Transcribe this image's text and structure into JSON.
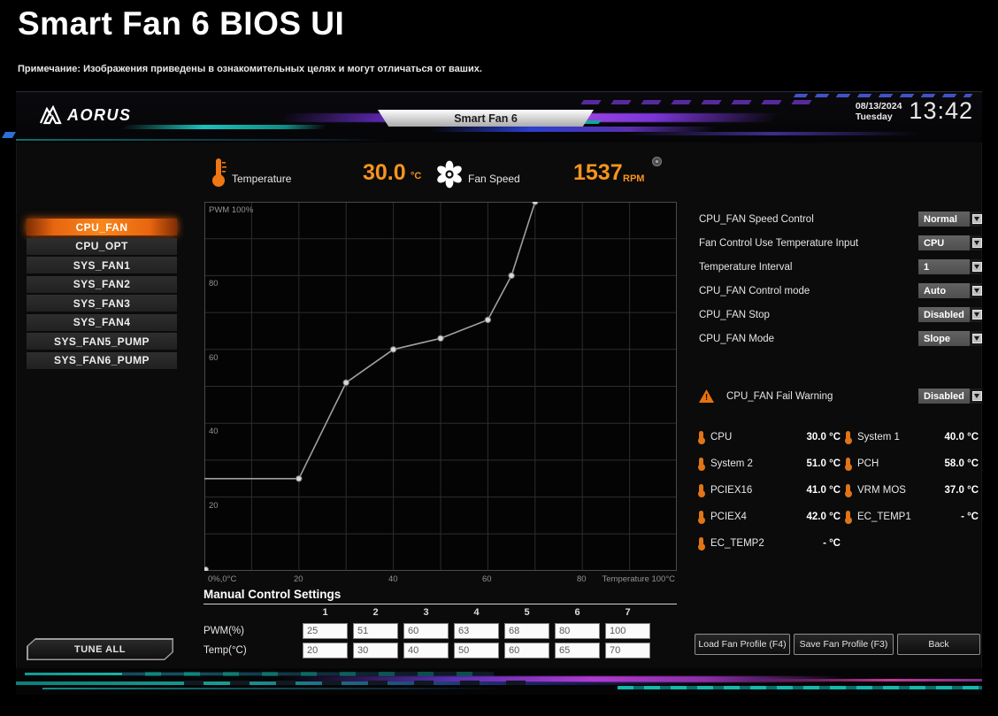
{
  "page": {
    "title": "Smart Fan 6 BIOS UI",
    "note": "Примечание: Изображения приведены в ознакомительных целях и могут отличаться от ваших."
  },
  "header": {
    "brand": "AORUS",
    "tab": "Smart Fan 6",
    "date": "08/13/2024",
    "weekday": "Tuesday",
    "time": "13:42"
  },
  "status": {
    "temperature_label": "Temperature",
    "temperature_value": "30.0",
    "temperature_unit": "°C",
    "fan_label": "Fan Speed",
    "fan_value": "1537",
    "fan_unit": "RPM"
  },
  "sidebar": {
    "items": [
      {
        "label": "CPU_FAN",
        "selected": true
      },
      {
        "label": "CPU_OPT",
        "selected": false
      },
      {
        "label": "SYS_FAN1",
        "selected": false
      },
      {
        "label": "SYS_FAN2",
        "selected": false
      },
      {
        "label": "SYS_FAN3",
        "selected": false
      },
      {
        "label": "SYS_FAN4",
        "selected": false
      },
      {
        "label": "SYS_FAN5_PUMP",
        "selected": false
      },
      {
        "label": "SYS_FAN6_PUMP",
        "selected": false
      }
    ],
    "tune_all": "TUNE ALL"
  },
  "chart_data": {
    "type": "line",
    "title": "CPU_FAN curve (PWM % vs temperature °C)",
    "x": [
      0,
      20,
      30,
      40,
      50,
      60,
      65,
      70
    ],
    "y": [
      25,
      25,
      51,
      60,
      63,
      68,
      80,
      100
    ],
    "xlabel": "Temperature (°C)",
    "ylabel": "PWM (%)",
    "xlim": [
      0,
      100
    ],
    "ylim": [
      0,
      100
    ],
    "grid": true,
    "x_ticks": [
      "0%,0°C",
      "20",
      "40",
      "60",
      "80",
      "Temperature 100°C"
    ],
    "y_ticks": [
      "PWM 100%",
      "80",
      "60",
      "40",
      "20"
    ]
  },
  "settings": {
    "rows": [
      {
        "label": "CPU_FAN Speed Control",
        "value": "Normal"
      },
      {
        "label": "Fan Control Use Temperature Input",
        "value": "CPU"
      },
      {
        "label": "Temperature Interval",
        "value": "1"
      },
      {
        "label": "CPU_FAN Control mode",
        "value": "Auto"
      },
      {
        "label": "CPU_FAN Stop",
        "value": "Disabled"
      },
      {
        "label": "CPU_FAN Mode",
        "value": "Slope"
      }
    ]
  },
  "fail_warning": {
    "label": "CPU_FAN Fail Warning",
    "value": "Disabled"
  },
  "sensors": {
    "items": [
      {
        "name": "CPU",
        "value": "30.0 °C"
      },
      {
        "name": "System 1",
        "value": "40.0 °C"
      },
      {
        "name": "System 2",
        "value": "51.0 °C"
      },
      {
        "name": "PCH",
        "value": "58.0 °C"
      },
      {
        "name": "PCIEX16",
        "value": "41.0 °C"
      },
      {
        "name": "VRM MOS",
        "value": "37.0 °C"
      },
      {
        "name": "PCIEX4",
        "value": "42.0 °C"
      },
      {
        "name": "EC_TEMP1",
        "value": "- °C"
      },
      {
        "name": "EC_TEMP2",
        "value": "- °C"
      }
    ]
  },
  "manual": {
    "title": "Manual Control Settings",
    "columns": [
      "1",
      "2",
      "3",
      "4",
      "5",
      "6",
      "7"
    ],
    "pwm_label": "PWM(%)",
    "temp_label": "Temp(°C)",
    "pwm": [
      "25",
      "51",
      "60",
      "63",
      "68",
      "80",
      "100"
    ],
    "temp": [
      "20",
      "30",
      "40",
      "50",
      "60",
      "65",
      "70"
    ]
  },
  "footer": {
    "load": "Load Fan Profile (F4)",
    "save": "Save Fan Profile (F3)",
    "back": "Back"
  },
  "colors": {
    "accent_orange": "#f7941d",
    "selected_item_orange": "#e8650f",
    "curve_gray": "#9f9f9f"
  }
}
